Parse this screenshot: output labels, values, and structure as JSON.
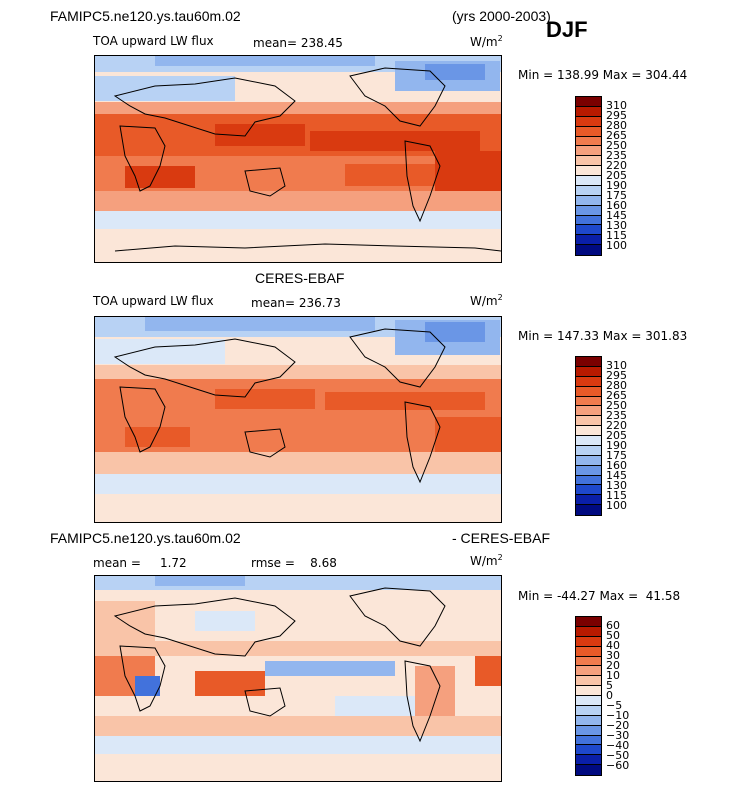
{
  "header": {
    "case_name": "FAMIPC5.ne120.ys.tau60m.02",
    "years": "(yrs 2000-2003)",
    "season": "DJF"
  },
  "panels": [
    {
      "title": "",
      "variable": "TOA upward LW flux",
      "mean": "mean= 238.45",
      "units": "W/m",
      "units_exp": "2",
      "minmax": "Min = 138.99 Max = 304.44",
      "palette": "abs"
    },
    {
      "title": "CERES-EBAF",
      "variable": "TOA upward LW flux",
      "mean": "mean= 236.73",
      "units": "W/m",
      "units_exp": "2",
      "minmax": "Min = 147.33 Max = 301.83",
      "palette": "abs"
    },
    {
      "title_left": "FAMIPC5.ne120.ys.tau60m.02",
      "title_right": "- CERES-EBAF",
      "mean": "mean =     1.72",
      "rmse": "rmse =    8.68",
      "units": "W/m",
      "units_exp": "2",
      "minmax": "Min = -44.27 Max =  41.58",
      "palette": "diff"
    }
  ],
  "colorbar_abs": {
    "labels": [
      "310",
      "295",
      "280",
      "265",
      "250",
      "235",
      "220",
      "205",
      "190",
      "175",
      "160",
      "145",
      "130",
      "115",
      "100"
    ],
    "colors": [
      "#7a0000",
      "#b81a00",
      "#d93a10",
      "#e85a28",
      "#f07b4e",
      "#f5a07e",
      "#f9c4a8",
      "#fbe6d8",
      "#dbe8f8",
      "#b8d2f4",
      "#92b6ee",
      "#6a96e6",
      "#4272dc",
      "#1e48cc",
      "#0a1fa8",
      "#000a80"
    ]
  },
  "colorbar_diff": {
    "labels": [
      "60",
      "50",
      "40",
      "30",
      "20",
      "10",
      "5",
      "0",
      "−5",
      "−10",
      "−20",
      "−30",
      "−40",
      "−50",
      "−60"
    ],
    "colors": [
      "#7a0000",
      "#b81a00",
      "#d93a10",
      "#e85a28",
      "#f07b4e",
      "#f5a07e",
      "#f9c4a8",
      "#fbe6d8",
      "#dbe8f8",
      "#b8d2f4",
      "#92b6ee",
      "#6a96e6",
      "#4272dc",
      "#1e48cc",
      "#0a1fa8",
      "#000a80"
    ]
  }
}
